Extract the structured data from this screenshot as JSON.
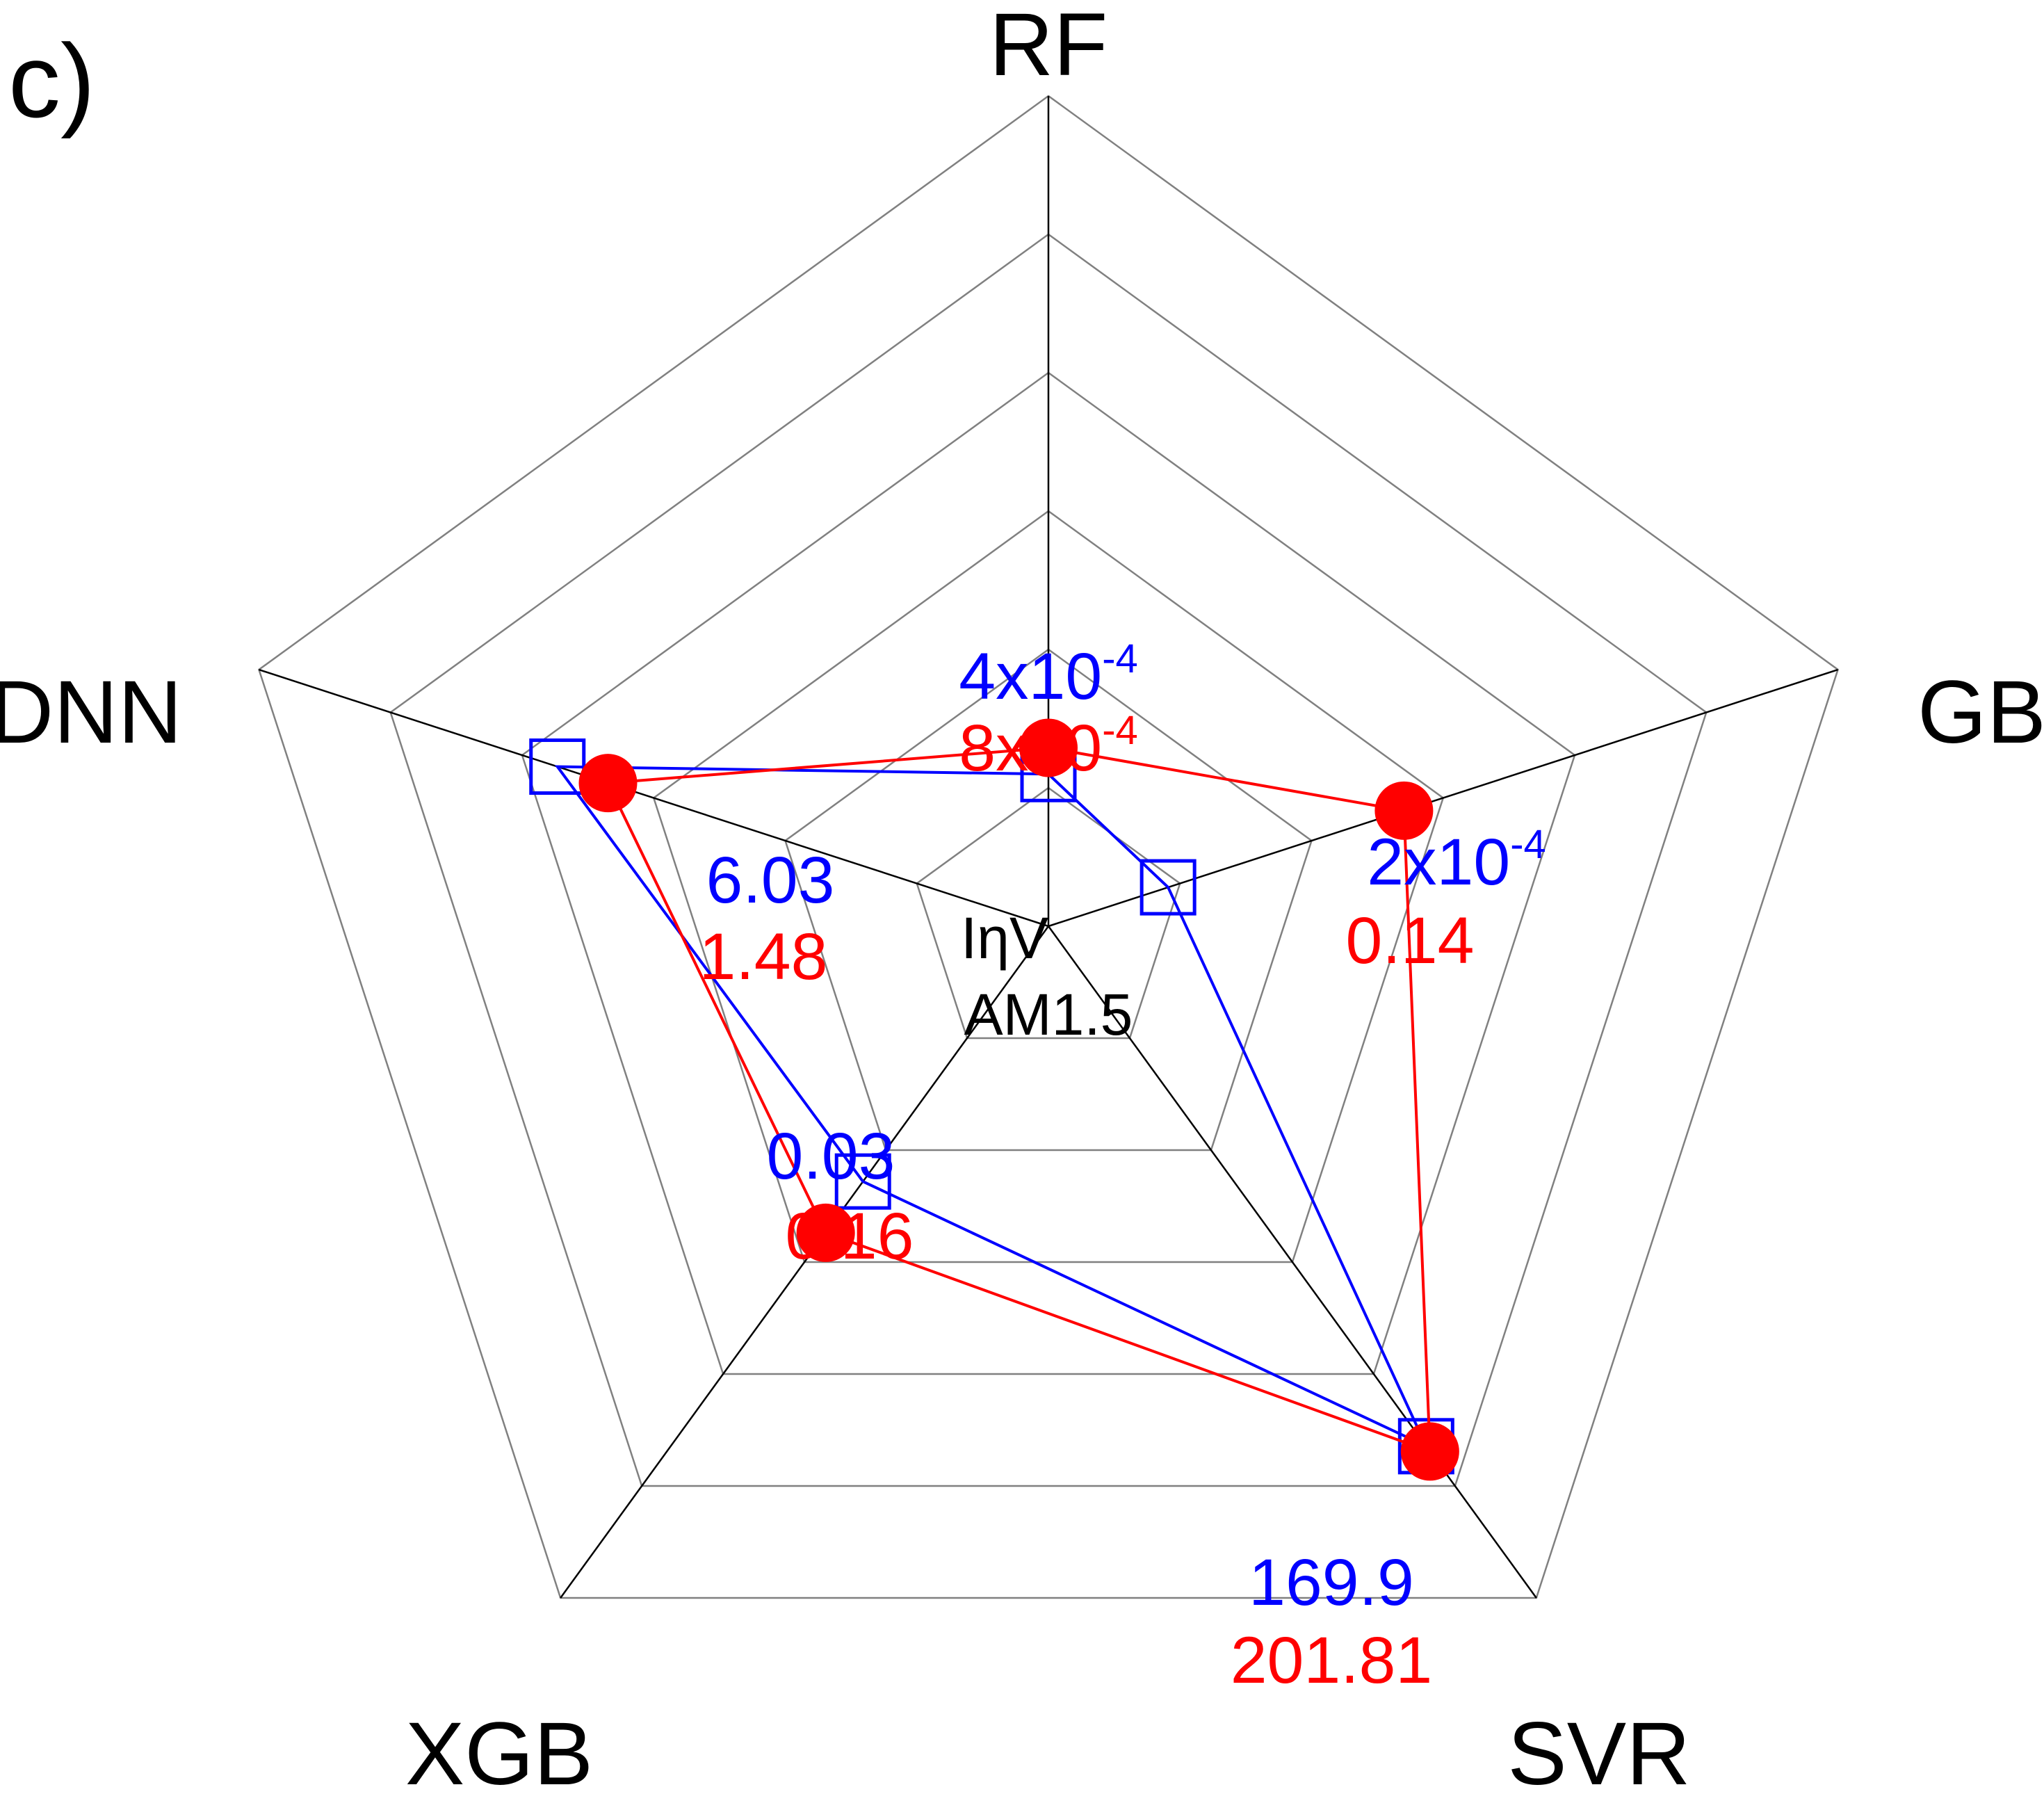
{
  "panel_label": "c",
  "chart_data": {
    "type": "radar",
    "axes": [
      "RF",
      "GB",
      "SVR",
      "XGB",
      "DNN"
    ],
    "center_label": [
      "IηV",
      "AM1.5"
    ],
    "series": [
      {
        "marker": "open-square",
        "color": "#0000ff",
        "values": [
          0.0004,
          0.0002,
          169.9,
          0.03,
          6.03
        ],
        "labels": [
          {
            "base": "4x10",
            "exp": "-4"
          },
          {
            "base": "2x10",
            "exp": "-4"
          },
          {
            "base": "169.9",
            "exp": ""
          },
          {
            "base": "0.03",
            "exp": ""
          },
          {
            "base": "6.03",
            "exp": ""
          }
        ]
      },
      {
        "marker": "filled-circle",
        "color": "#ff0000",
        "values": [
          0.0008,
          0.14,
          201.81,
          0.16,
          1.48
        ],
        "labels": [
          {
            "base": "8x10",
            "exp": "-4"
          },
          {
            "base": "0.14",
            "exp": ""
          },
          {
            "base": "201.81",
            "exp": ""
          },
          {
            "base": "0.16",
            "exp": ""
          },
          {
            "base": "1.48",
            "exp": ""
          }
        ]
      }
    ],
    "grid_rings": 6,
    "grid": true,
    "legend": "none"
  }
}
